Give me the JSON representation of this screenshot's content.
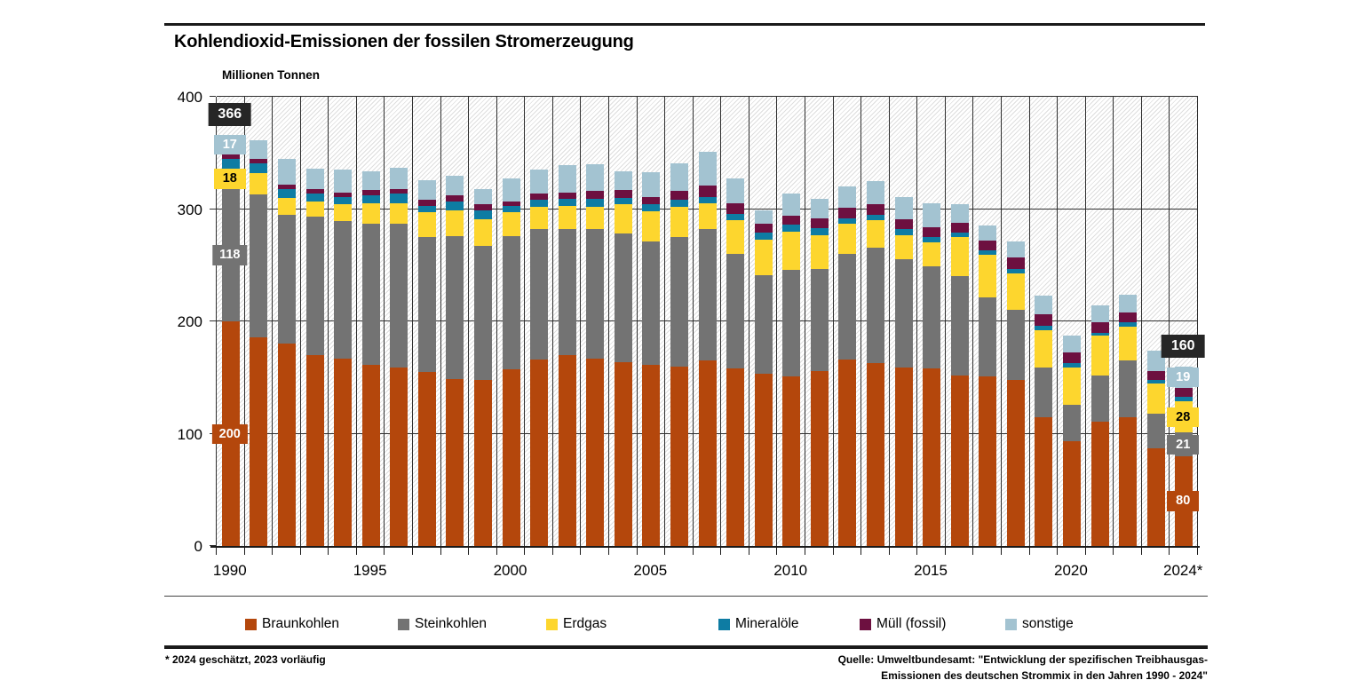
{
  "title": "Kohlendioxid-Emissionen der fossilen Stromerzeugung",
  "y_axis": {
    "title": "Millionen Tonnen",
    "ticks": [
      {
        "label": "400",
        "value": 400
      },
      {
        "label": "300",
        "value": 300
      },
      {
        "label": "200",
        "value": 200
      },
      {
        "label": "100",
        "value": 100
      },
      {
        "label": "0",
        "value": 0
      }
    ]
  },
  "x_axis": {
    "ticks": [
      {
        "label": "1990",
        "year": 1990
      },
      {
        "label": "1995",
        "year": 1995
      },
      {
        "label": "2000",
        "year": 2000
      },
      {
        "label": "2005",
        "year": 2005
      },
      {
        "label": "2010",
        "year": 2010
      },
      {
        "label": "2015",
        "year": 2015
      },
      {
        "label": "2020",
        "year": 2020
      },
      {
        "label": "2024*",
        "year": 2024
      }
    ]
  },
  "legend": {
    "items": [
      {
        "label": "Braunkohlen",
        "color": "#b4470c"
      },
      {
        "label": "Steinkohlen",
        "color": "#737373"
      },
      {
        "label": "Erdgas",
        "color": "#fdd62e"
      },
      {
        "label": "Mineralöle",
        "color": "#0e7ca3"
      },
      {
        "label": "Müll (fossil)",
        "color": "#6d1040"
      },
      {
        "label": "sonstige",
        "color": "#a3c3d1"
      }
    ],
    "positions_x": [
      276,
      448,
      615,
      809,
      968,
      1132
    ]
  },
  "footnote": "* 2024 geschätzt, 2023 vorläufig",
  "source": {
    "line1": "Quelle: Umweltbundesamt: \"Entwicklung der spezifischen Treibhausgas-",
    "line2": "Emissionen des deutschen Strommix in den Jahren 1990 - 2024\""
  },
  "chart_data": {
    "type": "bar",
    "stacked": true,
    "title": "Kohlendioxid-Emissionen der fossilen Stromerzeugung",
    "ylabel": "Millionen Tonnen",
    "ylim": [
      0,
      400
    ],
    "grid": "horizontal, every 100",
    "legend_position": "bottom",
    "x": [
      1990,
      1991,
      1992,
      1993,
      1994,
      1995,
      1996,
      1997,
      1998,
      1999,
      2000,
      2001,
      2002,
      2003,
      2004,
      2005,
      2006,
      2007,
      2008,
      2009,
      2010,
      2011,
      2012,
      2013,
      2014,
      2015,
      2016,
      2017,
      2018,
      2019,
      2020,
      2021,
      2022,
      2023,
      2024
    ],
    "series": [
      {
        "name": "Braunkohlen",
        "color": "#b4470c",
        "label_text_color": "#ffffff",
        "values": [
          200,
          186,
          180,
          170,
          167,
          161,
          159,
          155,
          149,
          148,
          157,
          166,
          170,
          167,
          164,
          161,
          160,
          165,
          158,
          153,
          151,
          156,
          166,
          163,
          159,
          158,
          152,
          151,
          148,
          115,
          93,
          111,
          115,
          87,
          80
        ]
      },
      {
        "name": "Steinkohlen",
        "color": "#737373",
        "label_text_color": "#ffffff",
        "values": [
          118,
          127,
          115,
          123,
          122,
          126,
          128,
          120,
          127,
          119,
          119,
          116,
          112,
          115,
          114,
          110,
          115,
          117,
          102,
          88,
          95,
          91,
          94,
          103,
          96,
          91,
          88,
          70,
          62,
          44,
          33,
          41,
          50,
          31,
          21
        ]
      },
      {
        "name": "Erdgas",
        "color": "#fdd62e",
        "label_text_color": "#000000",
        "values": [
          18,
          19,
          15,
          14,
          15,
          18,
          18,
          22,
          23,
          24,
          21,
          20,
          21,
          20,
          26,
          27,
          27,
          23,
          30,
          32,
          34,
          30,
          27,
          24,
          22,
          21,
          35,
          38,
          33,
          33,
          33,
          35,
          30,
          27,
          28
        ]
      },
      {
        "name": "Mineralöle",
        "color": "#0e7ca3",
        "label_text_color": "#ffffff",
        "values": [
          9,
          9,
          8,
          7,
          7,
          7,
          9,
          6,
          8,
          8,
          6,
          6,
          6,
          7,
          6,
          6,
          6,
          6,
          6,
          6,
          6,
          6,
          5,
          5,
          5,
          5,
          4,
          4,
          4,
          4,
          4,
          3,
          4,
          3,
          4
        ]
      },
      {
        "name": "Müll (fossil)",
        "color": "#6d1040",
        "label_text_color": "#ffffff",
        "values": [
          4,
          4,
          4,
          4,
          4,
          5,
          4,
          5,
          5,
          5,
          4,
          6,
          6,
          7,
          7,
          7,
          8,
          10,
          9,
          8,
          8,
          9,
          9,
          9,
          9,
          9,
          9,
          9,
          10,
          10,
          9,
          9,
          9,
          8,
          8
        ]
      },
      {
        "name": "sonstige",
        "color": "#a3c3d1",
        "label_text_color": "#ffffff",
        "values": [
          17,
          16,
          23,
          18,
          20,
          17,
          19,
          18,
          18,
          14,
          20,
          21,
          24,
          24,
          17,
          22,
          25,
          30,
          22,
          12,
          20,
          17,
          19,
          21,
          20,
          21,
          16,
          13,
          14,
          17,
          15,
          15,
          16,
          18,
          19
        ]
      }
    ],
    "totals": [
      366,
      361,
      345,
      336,
      335,
      334,
      337,
      326,
      330,
      318,
      327,
      335,
      339,
      340,
      334,
      333,
      341,
      351,
      327,
      299,
      314,
      309,
      320,
      325,
      311,
      305,
      304,
      285,
      271,
      223,
      187,
      214,
      224,
      174,
      160
    ],
    "callouts": [
      {
        "year": 1990,
        "type": "total",
        "text": "366"
      },
      {
        "year": 1990,
        "series": "sonstige",
        "text": "17"
      },
      {
        "year": 1990,
        "series": "Erdgas",
        "text": "18"
      },
      {
        "year": 1990,
        "series": "Steinkohlen",
        "text": "118"
      },
      {
        "year": 1990,
        "series": "Braunkohlen",
        "text": "200"
      },
      {
        "year": 2024,
        "type": "total",
        "text": "160"
      },
      {
        "year": 2024,
        "series": "sonstige",
        "text": "19"
      },
      {
        "year": 2024,
        "series": "Erdgas",
        "text": "28"
      },
      {
        "year": 2024,
        "series": "Steinkohlen",
        "text": "21"
      },
      {
        "year": 2024,
        "series": "Braunkohlen",
        "text": "80"
      }
    ]
  }
}
